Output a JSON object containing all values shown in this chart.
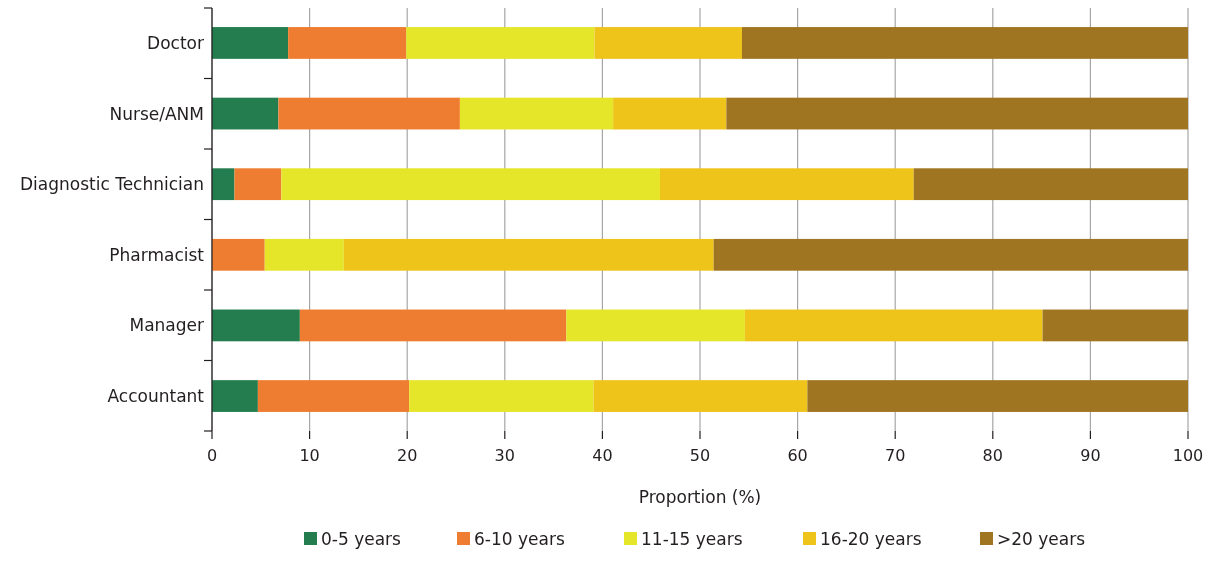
{
  "chart_data": {
    "type": "bar",
    "orientation": "horizontal",
    "stacked": true,
    "xlabel": "Proportion (%)",
    "categories": [
      "Doctor",
      "Nurse/ANM",
      "Diagnostic Technician",
      "Pharmacist",
      "Manager",
      "Accountant"
    ],
    "series": [
      {
        "name": "0-5 years",
        "color": "#237d4e",
        "values": [
          7.8,
          6.8,
          2.3,
          0,
          9.0,
          4.7
        ]
      },
      {
        "name": "6-10 years",
        "color": "#ee7d31",
        "values": [
          12.1,
          18.6,
          4.8,
          5.4,
          27.3,
          15.5
        ]
      },
      {
        "name": "11-15 years",
        "color": "#e5e52a",
        "values": [
          19.3,
          15.7,
          38.8,
          8.1,
          18.3,
          18.9
        ]
      },
      {
        "name": "16-20 years",
        "color": "#eec31a",
        "values": [
          15.1,
          11.6,
          26.0,
          37.9,
          30.5,
          21.9
        ]
      },
      {
        "name": ">20 years",
        "color": "#a07522",
        "values": [
          45.7,
          47.3,
          28.1,
          48.6,
          14.9,
          39.0
        ]
      }
    ],
    "xlim": [
      0,
      100
    ],
    "xticks": [
      0,
      10,
      20,
      30,
      40,
      50,
      60,
      70,
      80,
      90,
      100
    ],
    "grid": "x",
    "legend": "bottom"
  }
}
